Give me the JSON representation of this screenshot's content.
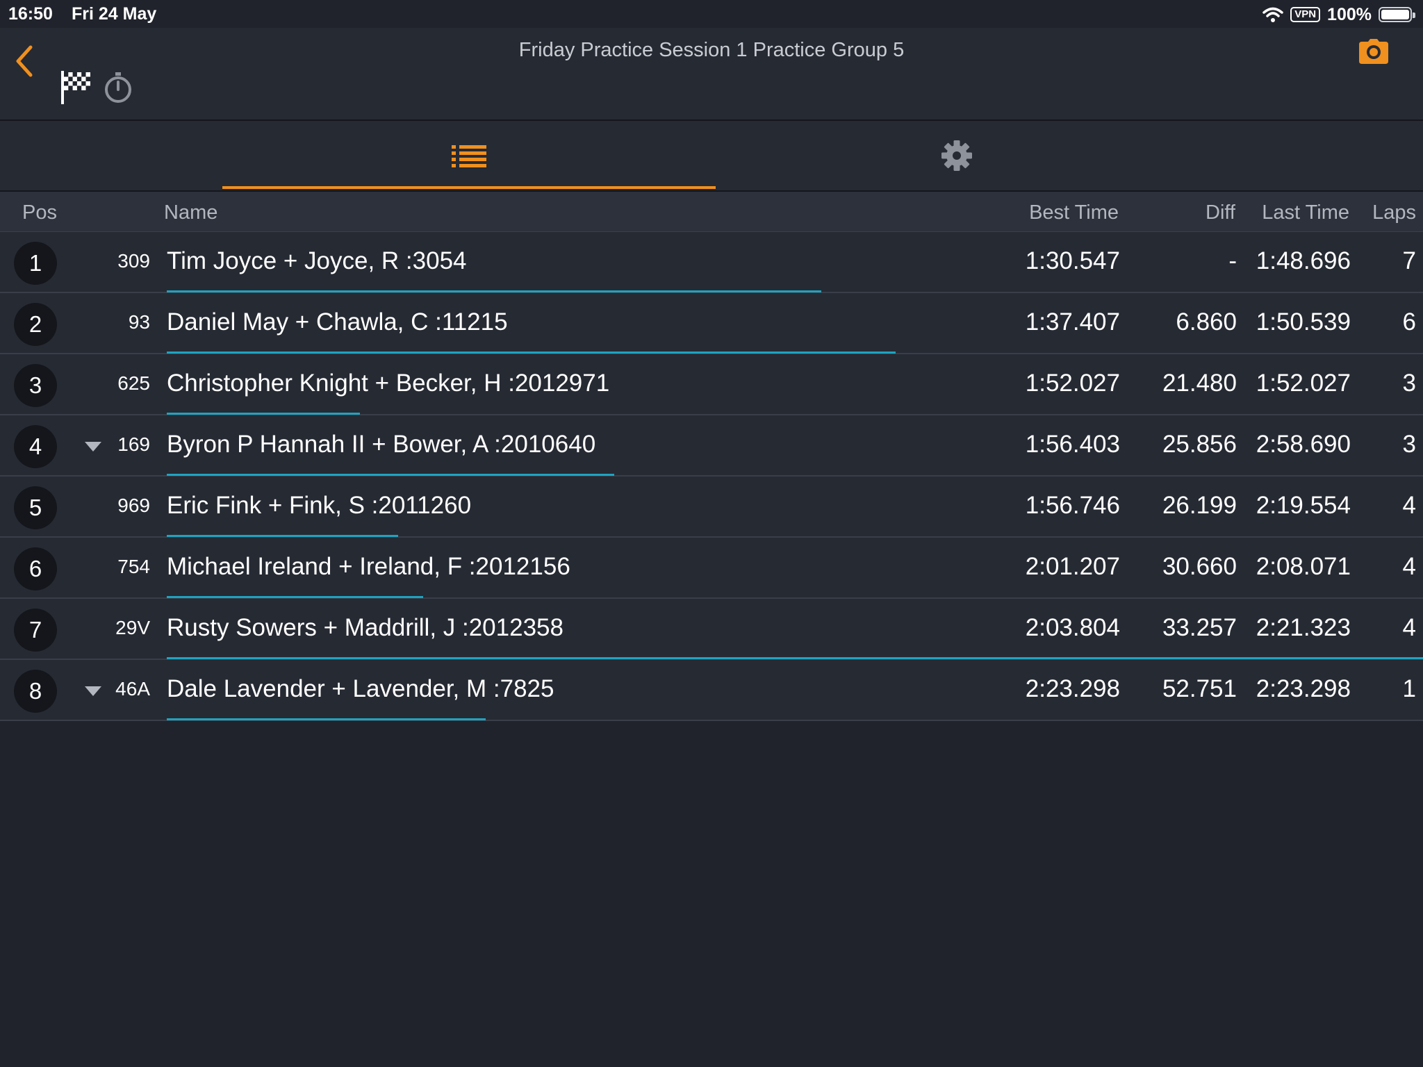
{
  "status_bar": {
    "time": "16:50",
    "date": "Fri 24 May",
    "vpn_label": "VPN",
    "battery_percent": "100%",
    "battery_level": 1.0,
    "wifi_icon": "wifi-icon"
  },
  "header": {
    "title": "Friday Practice Session 1 Practice Group 5",
    "back_icon": "chevron-left-icon",
    "camera_icon": "camera-icon",
    "flag_icon": "checkered-flag-icon",
    "stopwatch_icon": "stopwatch-icon"
  },
  "tabs": [
    {
      "icon": "list-icon",
      "active": true
    },
    {
      "icon": "gear-icon",
      "active": false
    }
  ],
  "colors": {
    "accent": "#f0901e",
    "progress": "#1fa3c0",
    "background": "#20232b"
  },
  "columns": {
    "pos": "Pos",
    "name": "Name",
    "best_time": "Best Time",
    "diff": "Diff",
    "last_time": "Last Time",
    "laps": "Laps"
  },
  "rows": [
    {
      "pos": "1",
      "indicator": false,
      "car": "309",
      "name": "Tim Joyce + Joyce, R :3054",
      "best": "1:30.547",
      "diff": "-",
      "last": "1:48.696",
      "laps": "7",
      "progress": 0.521
    },
    {
      "pos": "2",
      "indicator": false,
      "car": "93",
      "name": "Daniel May + Chawla, C :11215",
      "best": "1:37.407",
      "diff": "6.860",
      "last": "1:50.539",
      "laps": "6",
      "progress": 0.58
    },
    {
      "pos": "3",
      "indicator": false,
      "car": "625",
      "name": "Christopher Knight + Becker, H :2012971",
      "best": "1:52.027",
      "diff": "21.480",
      "last": "1:52.027",
      "laps": "3",
      "progress": 0.154
    },
    {
      "pos": "4",
      "indicator": true,
      "car": "169",
      "name": "Byron P Hannah II + Bower, A :2010640",
      "best": "1:56.403",
      "diff": "25.856",
      "last": "2:58.690",
      "laps": "3",
      "progress": 0.356
    },
    {
      "pos": "5",
      "indicator": false,
      "car": "969",
      "name": "Eric Fink + Fink, S :2011260",
      "best": "1:56.746",
      "diff": "26.199",
      "last": "2:19.554",
      "laps": "4",
      "progress": 0.184
    },
    {
      "pos": "6",
      "indicator": false,
      "car": "754",
      "name": "Michael Ireland + Ireland, F :2012156",
      "best": "2:01.207",
      "diff": "30.660",
      "last": "2:08.071",
      "laps": "4",
      "progress": 0.204
    },
    {
      "pos": "7",
      "indicator": false,
      "car": "29V",
      "name": "Rusty Sowers + Maddrill, J :2012358",
      "best": "2:03.804",
      "diff": "33.257",
      "last": "2:21.323",
      "laps": "4",
      "progress": 1.0
    },
    {
      "pos": "8",
      "indicator": true,
      "car": "46A",
      "name": "Dale Lavender + Lavender, M :7825",
      "best": "2:23.298",
      "diff": "52.751",
      "last": "2:23.298",
      "laps": "1",
      "progress": 0.254
    }
  ]
}
